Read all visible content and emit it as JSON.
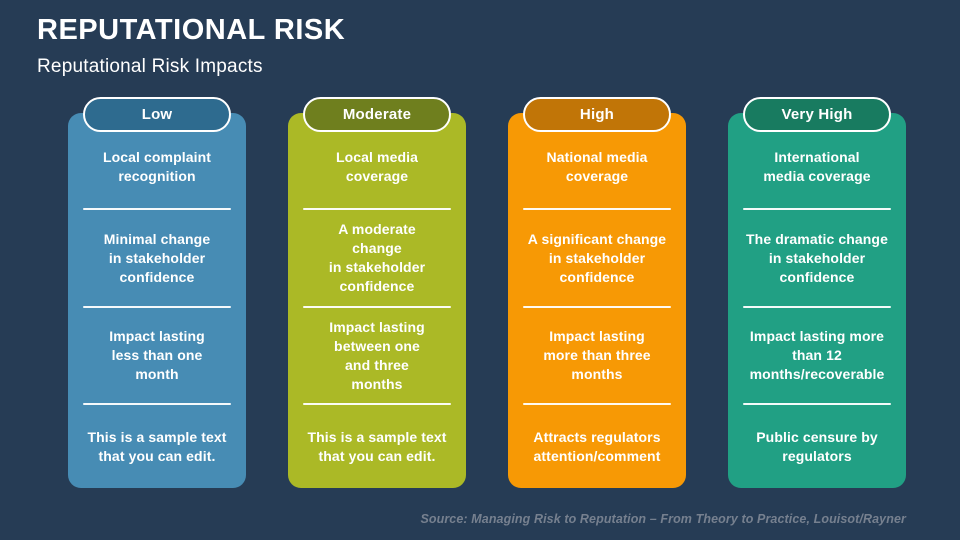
{
  "slide": {
    "title": "REPUTATIONAL RISK",
    "subtitle": "Reputational Risk Impacts",
    "source": "Source: Managing Risk to Reputation – From Theory to Practice, Louisot/Rayner"
  },
  "colors": {
    "background": "#263C55",
    "text": "#FFFFFF",
    "source_text": "#76808F"
  },
  "columns": [
    {
      "label": "Low",
      "pill_color": "#2E6B8F",
      "body_color": "#478CB4",
      "items": [
        "Local complaint\nrecognition",
        "Minimal change\nin stakeholder\nconfidence",
        "Impact lasting\nless than one\nmonth",
        "This is a sample text\nthat you can edit."
      ]
    },
    {
      "label": "Moderate",
      "pill_color": "#6F7F1E",
      "body_color": "#ABB926",
      "items": [
        "Local media\ncoverage",
        "A moderate\nchange\nin stakeholder\nconfidence",
        "Impact lasting\nbetween one\nand three\nmonths",
        "This is a sample text\nthat you can edit."
      ]
    },
    {
      "label": "High",
      "pill_color": "#C17507",
      "body_color": "#F79905",
      "items": [
        "National media\ncoverage",
        "A significant change\nin stakeholder\nconfidence",
        "Impact lasting\nmore than three\nmonths",
        "Attracts regulators\nattention/comment"
      ]
    },
    {
      "label": "Very High",
      "pill_color": "#187B60",
      "body_color": "#21A084",
      "items": [
        "International\nmedia coverage",
        "The dramatic change\nin stakeholder\nconfidence",
        "Impact lasting more\nthan 12\nmonths/recoverable",
        "Public censure by\nregulators"
      ]
    }
  ]
}
